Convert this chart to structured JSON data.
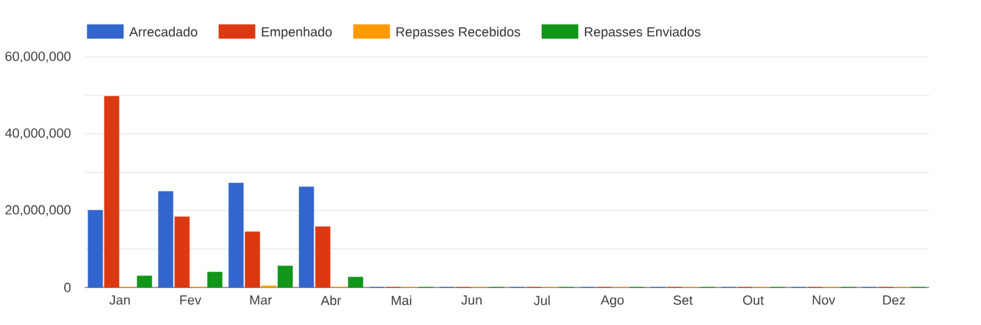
{
  "chart_data": {
    "type": "bar",
    "categories": [
      "Jan",
      "Fev",
      "Mar",
      "Abr",
      "Mai",
      "Jun",
      "Jul",
      "Ago",
      "Set",
      "Out",
      "Nov",
      "Dez"
    ],
    "series": [
      {
        "name": "Arrecadado",
        "color": "#3366cc",
        "values": [
          20100000,
          25000000,
          27200000,
          26200000,
          0,
          0,
          0,
          0,
          0,
          0,
          0,
          0
        ]
      },
      {
        "name": "Empenhado",
        "color": "#dc3912",
        "values": [
          49800000,
          18400000,
          14500000,
          15800000,
          0,
          0,
          0,
          0,
          0,
          0,
          0,
          0
        ]
      },
      {
        "name": "Repasses Recebidos",
        "color": "#ff9900",
        "values": [
          100000,
          100000,
          400000,
          100000,
          0,
          0,
          0,
          0,
          0,
          0,
          0,
          0
        ]
      },
      {
        "name": "Repasses Enviados",
        "color": "#109618",
        "values": [
          3000000,
          4000000,
          5600000,
          2700000,
          0,
          0,
          0,
          0,
          0,
          0,
          0,
          0
        ]
      }
    ],
    "ylim": [
      0,
      60000000
    ],
    "yticks": [
      {
        "value": 0,
        "label": "0"
      },
      {
        "value": 10000000,
        "label": null
      },
      {
        "value": 20000000,
        "label": "20,000,000"
      },
      {
        "value": 30000000,
        "label": null
      },
      {
        "value": 40000000,
        "label": "40,000,000"
      },
      {
        "value": 50000000,
        "label": null
      },
      {
        "value": 60000000,
        "label": "60,000,000"
      }
    ],
    "grid": "y",
    "legend": "top"
  }
}
